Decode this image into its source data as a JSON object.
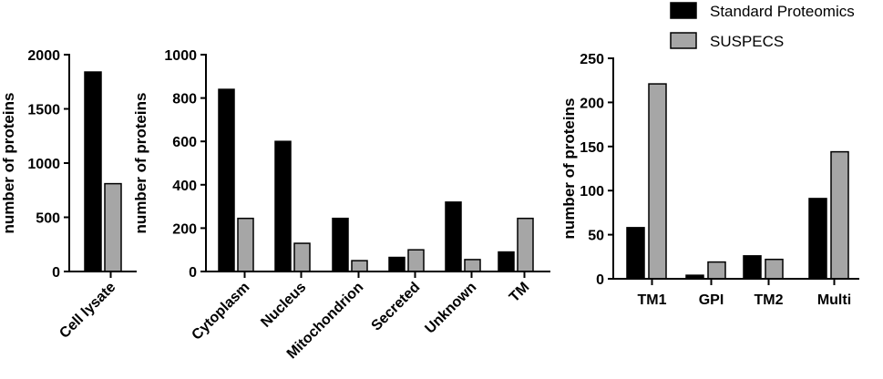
{
  "legend": {
    "items": [
      {
        "label": "Standard Proteomics",
        "color": "#000000"
      },
      {
        "label": "SUSPECS",
        "color": "#a6a6a6"
      }
    ],
    "placement": "top-right"
  },
  "chart_data": [
    {
      "type": "bar",
      "categories": [
        "Cell lysate"
      ],
      "series": [
        {
          "name": "Standard Proteomics",
          "values": [
            1840
          ]
        },
        {
          "name": "SUSPECS",
          "values": [
            810
          ]
        }
      ],
      "ylabel": "number of proteins",
      "ylim": [
        0,
        2000
      ],
      "yticks": [
        0,
        500,
        1000,
        1500,
        2000
      ],
      "grid": false
    },
    {
      "type": "bar",
      "categories": [
        "Cytoplasm",
        "Nucleus",
        "Mitochondrion",
        "Secreted",
        "Unknown",
        "TM"
      ],
      "series": [
        {
          "name": "Standard Proteomics",
          "values": [
            840,
            600,
            245,
            65,
            320,
            90
          ]
        },
        {
          "name": "SUSPECS",
          "values": [
            245,
            130,
            50,
            100,
            55,
            245
          ]
        }
      ],
      "ylabel": "number of proteins",
      "ylim": [
        0,
        1000
      ],
      "yticks": [
        0,
        200,
        400,
        600,
        800,
        1000
      ],
      "grid": false
    },
    {
      "type": "bar",
      "categories": [
        "TM1",
        "GPI",
        "TM2",
        "Multi"
      ],
      "series": [
        {
          "name": "Standard Proteomics",
          "values": [
            58,
            4,
            26,
            91
          ]
        },
        {
          "name": "SUSPECS",
          "values": [
            221,
            19,
            22,
            144
          ]
        }
      ],
      "ylabel": "number of proteins",
      "ylim": [
        0,
        250
      ],
      "yticks": [
        0,
        50,
        100,
        150,
        200,
        250
      ],
      "grid": false
    }
  ]
}
